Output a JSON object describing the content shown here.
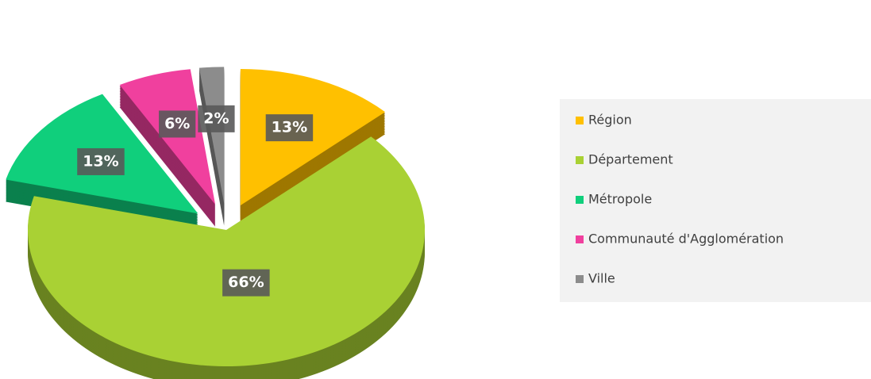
{
  "chart_data": {
    "type": "pie",
    "categories": [
      "Région",
      "Département",
      "Métropole",
      "Communauté d'Agglomération",
      "Ville"
    ],
    "values": [
      13,
      66,
      13,
      6,
      2
    ],
    "value_labels": [
      "13%",
      "66%",
      "13%",
      "6%",
      "2%"
    ],
    "colors": [
      "#ffc000",
      "#a9d134",
      "#10cf7c",
      "#f0409e",
      "#8c8c8c"
    ],
    "legend": "right"
  }
}
